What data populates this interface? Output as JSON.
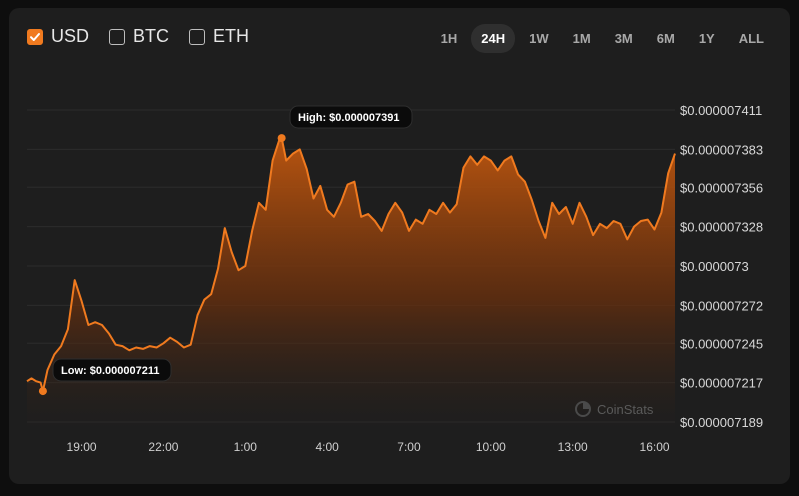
{
  "currencies": [
    {
      "label": "USD",
      "checked": true
    },
    {
      "label": "BTC",
      "checked": false
    },
    {
      "label": "ETH",
      "checked": false
    }
  ],
  "ranges": [
    "1H",
    "24H",
    "1W",
    "1M",
    "3M",
    "6M",
    "1Y",
    "ALL"
  ],
  "active_range": "24H",
  "accent_color": "#f07a1f",
  "watermark": "CoinStats",
  "chart_data": {
    "type": "area",
    "title": "",
    "xlabel": "",
    "ylabel": "",
    "x_tick_labels": [
      "19:00",
      "22:00",
      "1:00",
      "4:00",
      "7:00",
      "10:00",
      "13:00",
      "16:00"
    ],
    "y_tick_labels": [
      "$0.000007411",
      "$0.000007383",
      "$0.000007356",
      "$0.000007328",
      "$0.0000073",
      "$0.000007272",
      "$0.000007245",
      "$0.000007217",
      "$0.000007189"
    ],
    "y_tick_values": [
      7.411e-06,
      7.383e-06,
      7.356e-06,
      7.328e-06,
      7.3e-06,
      7.272e-06,
      7.245e-06,
      7.217e-06,
      7.189e-06
    ],
    "xlim": [
      "17:00",
      "16:45"
    ],
    "ylim": [
      7.189e-06,
      7.411e-06
    ],
    "grid": true,
    "annotations": {
      "high": {
        "label": "High: $0.000007391",
        "time": "2:20",
        "value": 7.391e-06
      },
      "low": {
        "label": "Low: $0.000007211",
        "time": "17:35",
        "value": 7.211e-06
      }
    },
    "series": [
      {
        "points": [
          [
            "17:00",
            7.218e-06
          ],
          [
            "17:10",
            7.22e-06
          ],
          [
            "17:20",
            7.218e-06
          ],
          [
            "17:30",
            7.217e-06
          ],
          [
            "17:35",
            7.211e-06
          ],
          [
            "17:45",
            7.226e-06
          ],
          [
            "18:00",
            7.237e-06
          ],
          [
            "18:15",
            7.243e-06
          ],
          [
            "18:30",
            7.255e-06
          ],
          [
            "18:45",
            7.29e-06
          ],
          [
            "19:00",
            7.275e-06
          ],
          [
            "19:15",
            7.258e-06
          ],
          [
            "19:30",
            7.26e-06
          ],
          [
            "19:45",
            7.258e-06
          ],
          [
            "20:00",
            7.252e-06
          ],
          [
            "20:15",
            7.244e-06
          ],
          [
            "20:30",
            7.243e-06
          ],
          [
            "20:45",
            7.24e-06
          ],
          [
            "21:00",
            7.242e-06
          ],
          [
            "21:15",
            7.241e-06
          ],
          [
            "21:30",
            7.243e-06
          ],
          [
            "21:45",
            7.242e-06
          ],
          [
            "22:00",
            7.245e-06
          ],
          [
            "22:15",
            7.249e-06
          ],
          [
            "22:30",
            7.246e-06
          ],
          [
            "22:45",
            7.242e-06
          ],
          [
            "23:00",
            7.244e-06
          ],
          [
            "23:15",
            7.265e-06
          ],
          [
            "23:30",
            7.276e-06
          ],
          [
            "23:45",
            7.28e-06
          ],
          [
            "0:00",
            7.298e-06
          ],
          [
            "0:15",
            7.327e-06
          ],
          [
            "0:30",
            7.31e-06
          ],
          [
            "0:45",
            7.297e-06
          ],
          [
            "1:00",
            7.3e-06
          ],
          [
            "1:15",
            7.325e-06
          ],
          [
            "1:30",
            7.345e-06
          ],
          [
            "1:45",
            7.34e-06
          ],
          [
            "2:00",
            7.375e-06
          ],
          [
            "2:15",
            7.39e-06
          ],
          [
            "2:20",
            7.391e-06
          ],
          [
            "2:30",
            7.375e-06
          ],
          [
            "2:45",
            7.38e-06
          ],
          [
            "3:00",
            7.383e-06
          ],
          [
            "3:15",
            7.369e-06
          ],
          [
            "3:30",
            7.348e-06
          ],
          [
            "3:45",
            7.357e-06
          ],
          [
            "4:00",
            7.34e-06
          ],
          [
            "4:15",
            7.335e-06
          ],
          [
            "4:30",
            7.345e-06
          ],
          [
            "4:45",
            7.358e-06
          ],
          [
            "5:00",
            7.36e-06
          ],
          [
            "5:15",
            7.335e-06
          ],
          [
            "5:30",
            7.337e-06
          ],
          [
            "5:45",
            7.332e-06
          ],
          [
            "6:00",
            7.325e-06
          ],
          [
            "6:15",
            7.337e-06
          ],
          [
            "6:30",
            7.345e-06
          ],
          [
            "6:45",
            7.338e-06
          ],
          [
            "7:00",
            7.325e-06
          ],
          [
            "7:15",
            7.333e-06
          ],
          [
            "7:30",
            7.33e-06
          ],
          [
            "7:45",
            7.34e-06
          ],
          [
            "8:00",
            7.337e-06
          ],
          [
            "8:15",
            7.345e-06
          ],
          [
            "8:30",
            7.338e-06
          ],
          [
            "8:45",
            7.344e-06
          ],
          [
            "9:00",
            7.37e-06
          ],
          [
            "9:15",
            7.378e-06
          ],
          [
            "9:30",
            7.372e-06
          ],
          [
            "9:45",
            7.378e-06
          ],
          [
            "10:00",
            7.375e-06
          ],
          [
            "10:15",
            7.368e-06
          ],
          [
            "10:30",
            7.375e-06
          ],
          [
            "10:45",
            7.378e-06
          ],
          [
            "11:00",
            7.365e-06
          ],
          [
            "11:15",
            7.36e-06
          ],
          [
            "11:30",
            7.347e-06
          ],
          [
            "11:45",
            7.332e-06
          ],
          [
            "12:00",
            7.32e-06
          ],
          [
            "12:15",
            7.345e-06
          ],
          [
            "12:30",
            7.337e-06
          ],
          [
            "12:45",
            7.342e-06
          ],
          [
            "13:00",
            7.33e-06
          ],
          [
            "13:15",
            7.345e-06
          ],
          [
            "13:30",
            7.335e-06
          ],
          [
            "13:45",
            7.322e-06
          ],
          [
            "14:00",
            7.33e-06
          ],
          [
            "14:15",
            7.327e-06
          ],
          [
            "14:30",
            7.332e-06
          ],
          [
            "14:45",
            7.33e-06
          ],
          [
            "15:00",
            7.319e-06
          ],
          [
            "15:15",
            7.328e-06
          ],
          [
            "15:30",
            7.332e-06
          ],
          [
            "15:45",
            7.333e-06
          ],
          [
            "16:00",
            7.326e-06
          ],
          [
            "16:15",
            7.338e-06
          ],
          [
            "16:30",
            7.366e-06
          ],
          [
            "16:45",
            7.38e-06
          ]
        ]
      }
    ]
  }
}
